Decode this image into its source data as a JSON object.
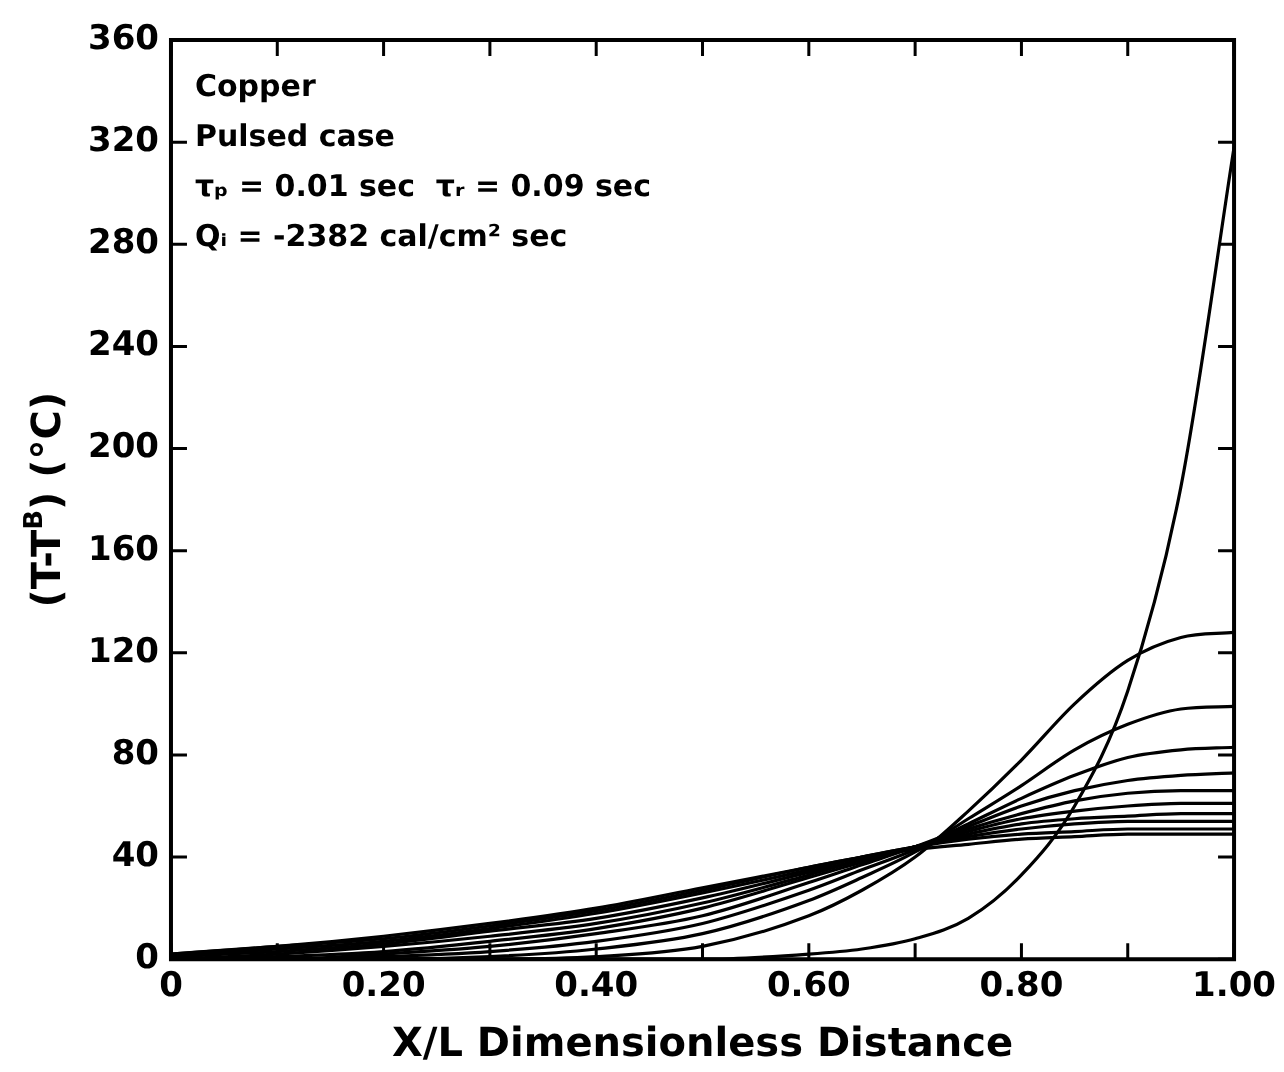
{
  "chart_data": {
    "type": "line",
    "xlabel": "X/L Dimensionless Distance",
    "ylabel": "(T-T$^{B}$) (°C)",
    "x": [
      0,
      0.1,
      0.2,
      0.3,
      0.4,
      0.5,
      0.6,
      0.65,
      0.7,
      0.75,
      0.8,
      0.85,
      0.9,
      0.95,
      1.0
    ],
    "series": [
      {
        "color": "#000000",
        "values": [
          0,
          0,
          0,
          0,
          0,
          0,
          2,
          4,
          8,
          16,
          33,
          60,
          105,
          185,
          318
        ]
      },
      {
        "color": "#000000",
        "values": [
          0,
          0,
          0,
          0,
          1,
          5,
          17,
          27,
          40,
          58,
          78,
          100,
          117,
          126,
          128
        ]
      },
      {
        "color": "#000000",
        "values": [
          0,
          0,
          0,
          1,
          4,
          10,
          23,
          32,
          42,
          55,
          68,
          82,
          92,
          98,
          99
        ]
      },
      {
        "color": "#000000",
        "values": [
          0,
          0,
          1,
          3,
          7,
          14,
          27,
          35,
          43,
          53,
          63,
          72,
          79,
          82,
          83
        ]
      },
      {
        "color": "#000000",
        "values": [
          0,
          0,
          2,
          5,
          10,
          17,
          30,
          37,
          44,
          52,
          60,
          66,
          70,
          72,
          73
        ]
      },
      {
        "color": "#000000",
        "values": [
          0,
          1,
          3,
          7,
          12,
          20,
          32,
          38,
          44,
          51,
          57,
          62,
          65,
          66,
          66
        ]
      },
      {
        "color": "#000000",
        "values": [
          0,
          2,
          5,
          9,
          14,
          22,
          33,
          39,
          44,
          50,
          55,
          58,
          60,
          61,
          61
        ]
      },
      {
        "color": "#000000",
        "values": [
          1,
          3,
          6,
          11,
          16,
          24,
          34,
          39,
          44,
          49,
          53,
          55,
          56,
          57,
          57
        ]
      },
      {
        "color": "#000000",
        "values": [
          1,
          4,
          7,
          12,
          18,
          26,
          35,
          40,
          44,
          48,
          51,
          53,
          54,
          54,
          54
        ]
      },
      {
        "color": "#000000",
        "values": [
          2,
          5,
          8,
          13,
          19,
          27,
          36,
          40,
          44,
          47,
          49,
          50,
          51,
          51,
          51
        ]
      },
      {
        "color": "#000000",
        "values": [
          2,
          5,
          9,
          14,
          20,
          28,
          36,
          40,
          43,
          45,
          47,
          48,
          49,
          49,
          49
        ]
      }
    ],
    "xlim": [
      0,
      1.0
    ],
    "xticks": [
      {
        "value": 0,
        "label": "0"
      },
      {
        "value": 0.1,
        "label": null
      },
      {
        "value": 0.2,
        "label": "0.20"
      },
      {
        "value": 0.3,
        "label": null
      },
      {
        "value": 0.4,
        "label": "0.40"
      },
      {
        "value": 0.5,
        "label": null
      },
      {
        "value": 0.6,
        "label": "0.60"
      },
      {
        "value": 0.7,
        "label": null
      },
      {
        "value": 0.8,
        "label": "0.80"
      },
      {
        "value": 0.9,
        "label": null
      },
      {
        "value": 1.0,
        "label": "1.00"
      }
    ],
    "ylim": [
      0,
      360
    ],
    "yticks": [
      0,
      40,
      80,
      120,
      160,
      200,
      240,
      280,
      320,
      360
    ],
    "annotations": [
      "Copper",
      "Pulsed case",
      "τₚ = 0.01 sec  τᵣ = 0.09 sec",
      "Qᵢ = -2382 cal/cm² sec"
    ],
    "grid": false,
    "legend": false,
    "marker": "none",
    "line_style": "solid"
  }
}
